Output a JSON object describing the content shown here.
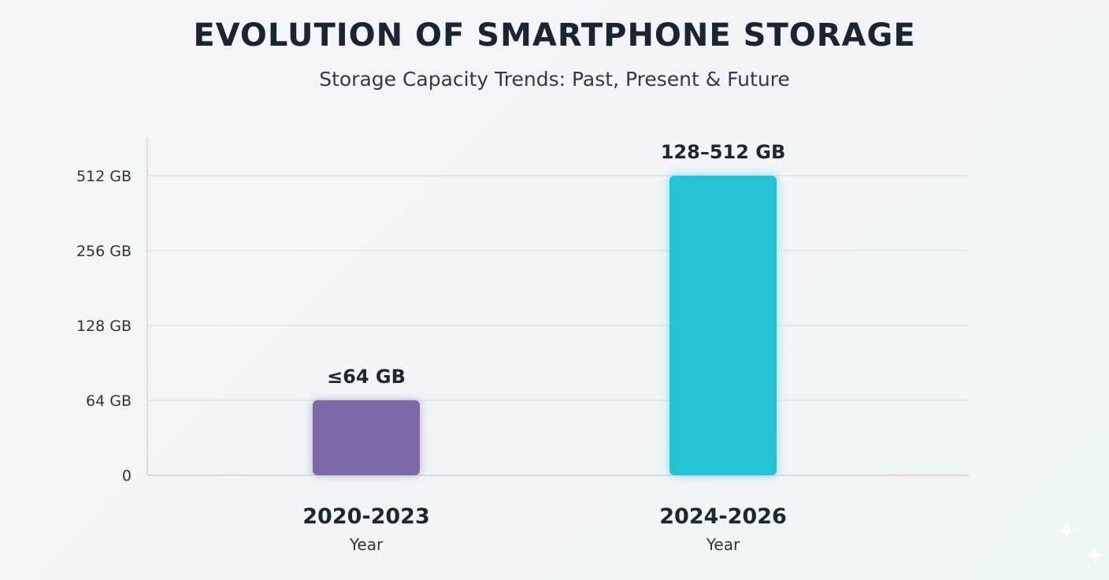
{
  "chart_data": {
    "type": "bar",
    "title": "EVOLUTION OF SMARTPHONE STORAGE",
    "subtitle": "Storage Capacity Trends: Past, Present & Future",
    "xlabel": "Year",
    "ylabel": "",
    "y_scale": "log2 (equally spaced ticks)",
    "y_ticks": [
      0,
      64,
      128,
      256,
      512
    ],
    "y_tick_labels": [
      "0",
      "64 GB",
      "128 GB",
      "256 GB",
      "512 GB"
    ],
    "grid": true,
    "categories": [
      "2020-2023",
      "2024-2026"
    ],
    "values": [
      64,
      512
    ],
    "data_labels": [
      "≤64 GB",
      "128–512 GB"
    ],
    "colors": [
      "#7b6aa6",
      "#25c3d6"
    ]
  }
}
